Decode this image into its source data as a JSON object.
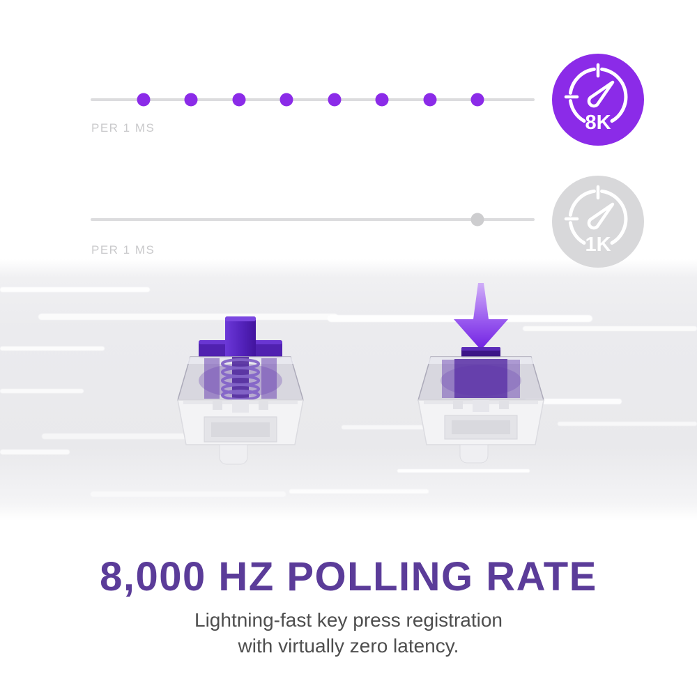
{
  "colors": {
    "accent_purple": "#8B2BE8",
    "badge_gray": "#D8D8DA",
    "heading_purple": "#5B3C99",
    "track_gray": "#DCDCDE",
    "label_gray": "#C9C9CB",
    "subtitle_gray": "#4E4E4E",
    "arrow_gradient_top": "#D0AEF8",
    "arrow_gradient_bottom": "#7021E2",
    "switch_stem_purple": "#5524BE"
  },
  "icons": {
    "fast_badge": "speedometer-icon",
    "slow_badge": "speedometer-icon",
    "press_indicator": "down-arrow-icon"
  },
  "timeline_fast": {
    "label": "PER 1 MS",
    "badge_label": "8K",
    "badge_color": "#8B2BE8",
    "dots": {
      "count": 8,
      "color": "#8B2BE8"
    }
  },
  "timeline_slow": {
    "label": "PER 1 MS",
    "badge_label": "1K",
    "badge_color": "#D8D8DA",
    "dots": {
      "count": 1,
      "color": "#CDCDCF"
    }
  },
  "caption": {
    "heading": "8,000 HZ POLLING RATE",
    "subtitle_line1": "Lightning-fast key press registration",
    "subtitle_line2": "with virtually zero latency."
  }
}
